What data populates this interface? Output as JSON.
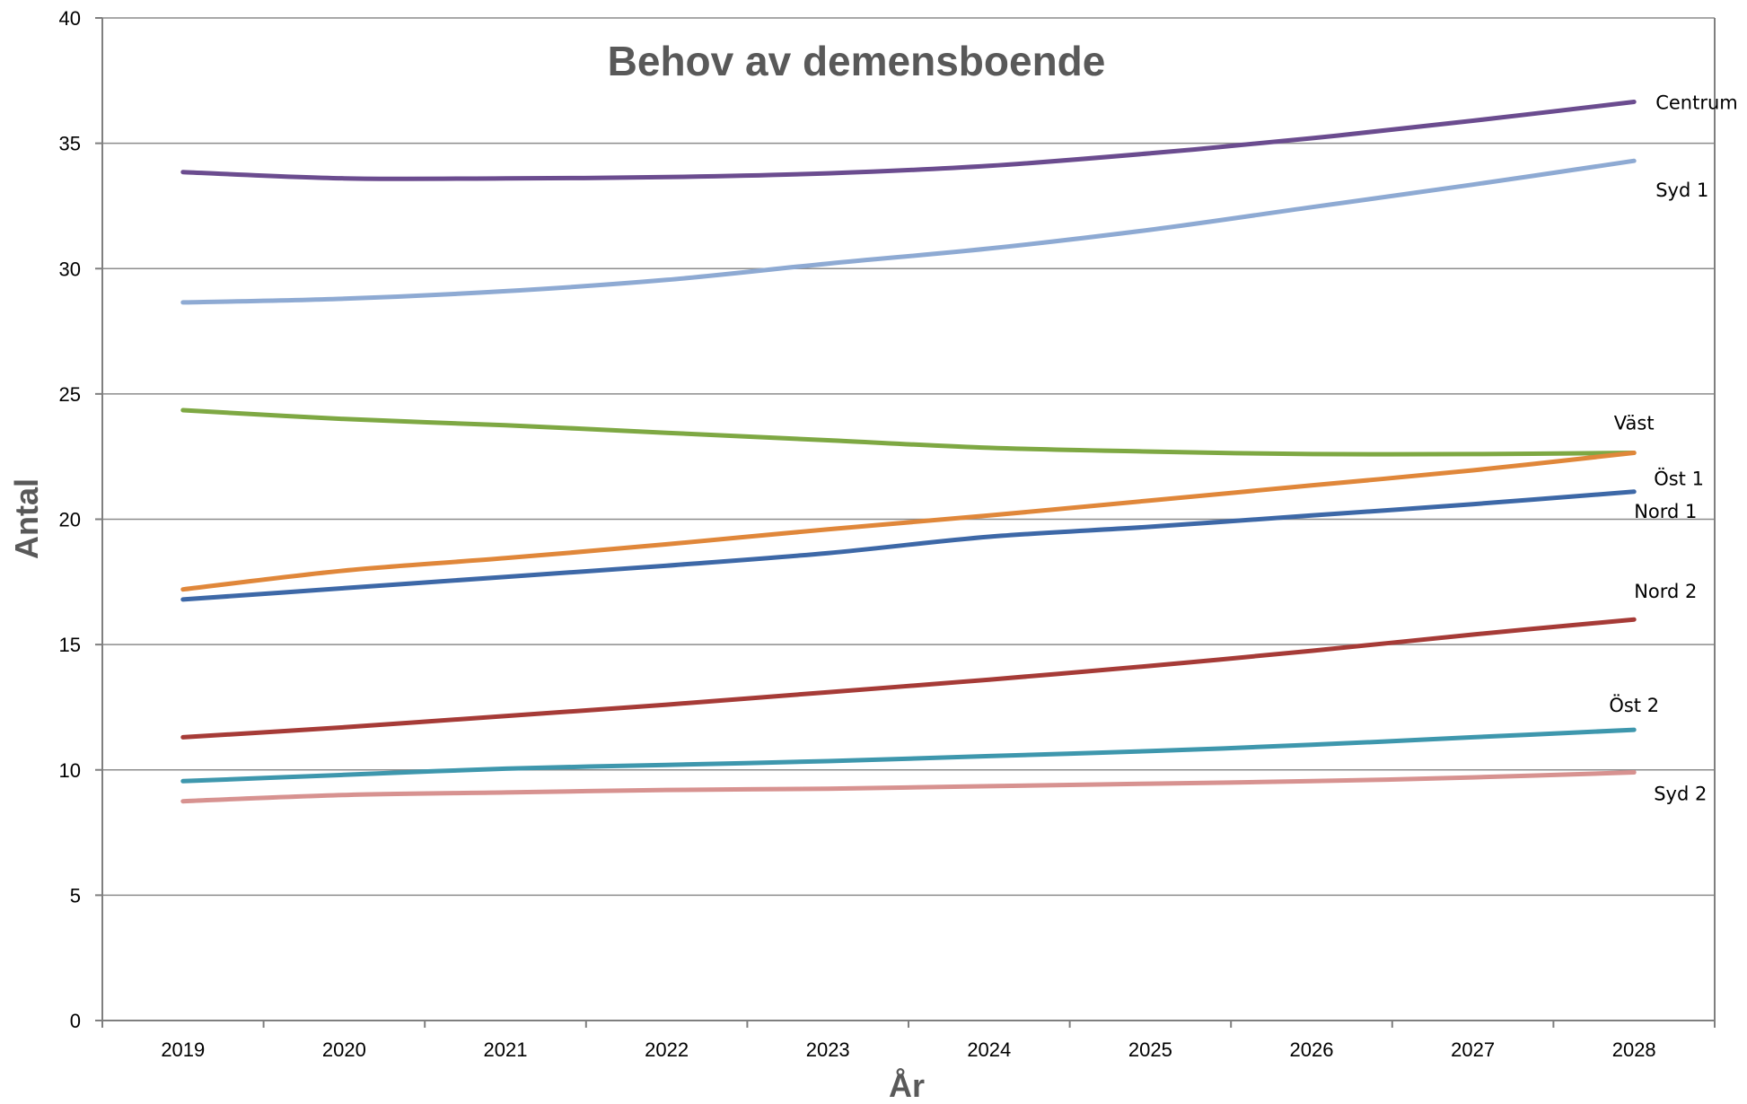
{
  "chart_data": {
    "type": "line",
    "title": "Behov av demensboende",
    "xlabel": "År",
    "ylabel": "Antal",
    "ylim": [
      0,
      40
    ],
    "yticks": [
      "0",
      "5",
      "10",
      "15",
      "20",
      "25",
      "30",
      "35",
      "40"
    ],
    "grid": true,
    "legend": "inline-labels",
    "categories": [
      "2019",
      "2020",
      "2021",
      "2022",
      "2023",
      "2024",
      "2025",
      "2026",
      "2027",
      "2028"
    ],
    "series": [
      {
        "name": "Centrum",
        "color": "#6b4c8f",
        "values": [
          33.85,
          33.6,
          33.6,
          33.65,
          33.8,
          34.1,
          34.6,
          35.2,
          35.9,
          36.65
        ]
      },
      {
        "name": "Syd 1",
        "color": "#8eaad3",
        "values": [
          28.65,
          28.8,
          29.1,
          29.55,
          30.2,
          30.8,
          31.55,
          32.45,
          33.35,
          34.3
        ]
      },
      {
        "name": "Väst",
        "color": "#7ea843",
        "values": [
          24.35,
          24.0,
          23.75,
          23.45,
          23.15,
          22.85,
          22.7,
          22.6,
          22.6,
          22.65
        ]
      },
      {
        "name": "Öst 1",
        "color": "#e0873a",
        "values": [
          17.2,
          17.95,
          18.45,
          19.0,
          19.6,
          20.15,
          20.75,
          21.35,
          21.95,
          22.65
        ]
      },
      {
        "name": "Nord 1",
        "color": "#3d68a7",
        "values": [
          16.8,
          17.25,
          17.7,
          18.15,
          18.65,
          19.3,
          19.7,
          20.15,
          20.6,
          21.1
        ]
      },
      {
        "name": "Nord 2",
        "color": "#a63b37",
        "values": [
          11.3,
          11.7,
          12.15,
          12.6,
          13.1,
          13.6,
          14.15,
          14.75,
          15.4,
          16.0
        ]
      },
      {
        "name": "Öst 2",
        "color": "#3e97ad",
        "values": [
          9.55,
          9.8,
          10.05,
          10.2,
          10.35,
          10.55,
          10.75,
          11.0,
          11.3,
          11.6
        ]
      },
      {
        "name": "Syd 2",
        "color": "#d79290",
        "values": [
          8.75,
          9.0,
          9.1,
          9.2,
          9.25,
          9.35,
          9.45,
          9.55,
          9.7,
          9.9
        ]
      }
    ]
  }
}
